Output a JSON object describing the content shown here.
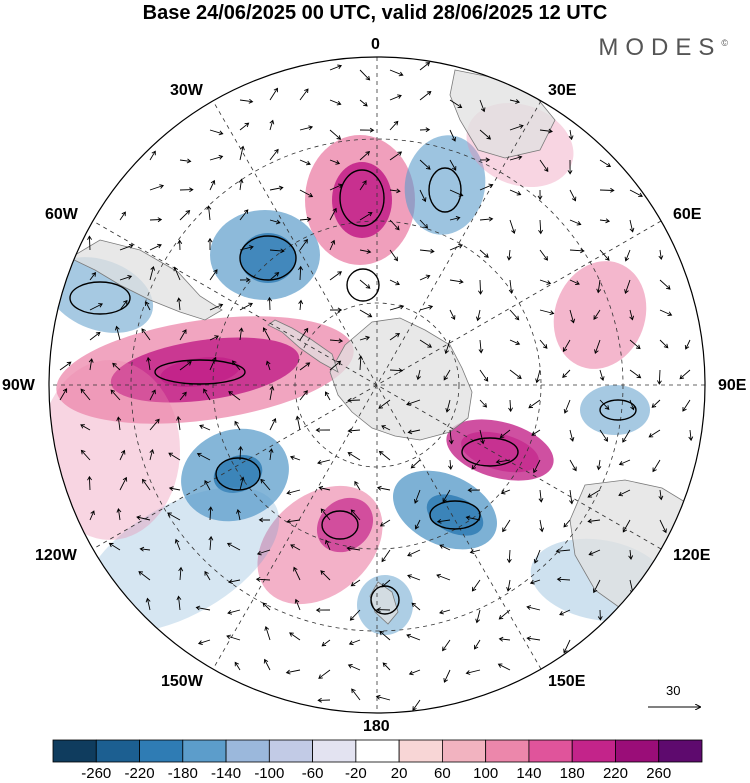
{
  "title": "Base 24/06/2025 00 UTC, valid 28/06/2025 12 UTC",
  "brand": "MODES",
  "brand_mark": "©",
  "longitude_labels": {
    "lon_0": "0",
    "lon_30e": "30E",
    "lon_60e": "60E",
    "lon_90e": "90E",
    "lon_120e": "120E",
    "lon_150e": "150E",
    "lon_180": "180",
    "lon_150w": "150W",
    "lon_120w": "120W",
    "lon_90w": "90W",
    "lon_60w": "60W",
    "lon_30w": "30W"
  },
  "wind_reference": {
    "label": "30"
  },
  "colorbar": {
    "tick_labels": [
      "-260",
      "-220",
      "-180",
      "-140",
      "-100",
      "-60",
      "-20",
      "20",
      "60",
      "100",
      "140",
      "180",
      "220",
      "260"
    ],
    "colors": [
      "#0f3c5e",
      "#1c5f91",
      "#2f7cb4",
      "#5c9dcb",
      "#9bb8dc",
      "#c2cbe6",
      "#e3e3f1",
      "#ffffff",
      "#f8d6d6",
      "#f2b3c0",
      "#ec87ab",
      "#e0549b",
      "#c3248a",
      "#9a0d78",
      "#5e0a6e"
    ]
  },
  "anomaly_colors": {
    "positive": "#ec87ab",
    "strong_positive": "#c3248a",
    "negative": "#5c9dcb",
    "strong_negative": "#2f7cb4",
    "land": "#e0e0e0"
  }
}
